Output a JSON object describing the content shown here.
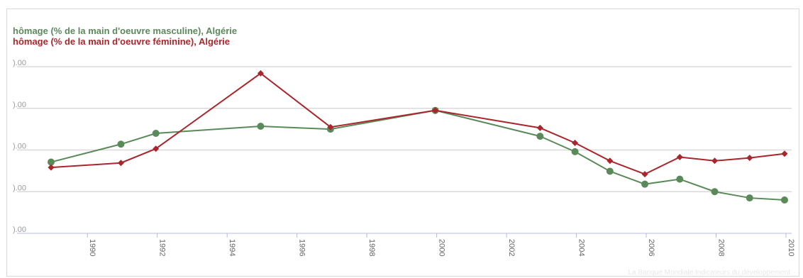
{
  "chart_data": {
    "type": "line",
    "title": "",
    "xlabel": "",
    "ylabel": "",
    "legend_position": "top-left",
    "grid": true,
    "x_ticks": [
      1990,
      1992,
      1994,
      1996,
      1998,
      2000,
      2002,
      2004,
      2006,
      2008,
      2010
    ],
    "x_tick_labels": [
      "1990",
      "1992",
      "1994",
      "1996",
      "1998",
      "2000",
      "2002",
      "2004",
      "2006",
      "2008",
      "2010"
    ],
    "y_tick_labels": [
      ").00",
      ").00",
      ").00",
      ").00",
      ").00"
    ],
    "xlim": [
      1989,
      2010
    ],
    "ylim": [
      0,
      4
    ],
    "series": [
      {
        "name": "hômage (% de la main d'oeuvre masculine), Algérie",
        "color": "#5a8a5a",
        "marker": "circle",
        "x": [
          1989,
          1991,
          1992,
          1995,
          1997,
          2000,
          2003,
          2004,
          2005,
          2006,
          2007,
          2008,
          2009,
          2010
        ],
        "y": [
          1.71,
          2.14,
          2.4,
          2.57,
          2.5,
          2.95,
          2.33,
          1.96,
          1.49,
          1.18,
          1.3,
          1.0,
          0.85,
          0.8
        ]
      },
      {
        "name": "hômage (% de la main d'oeuvre féminine), Algérie",
        "color": "#a8262c",
        "marker": "diamond",
        "x": [
          1989,
          1991,
          1992,
          1995,
          1997,
          2000,
          2003,
          2004,
          2005,
          2006,
          2007,
          2008,
          2009,
          2010
        ],
        "y": [
          1.58,
          1.69,
          2.03,
          3.84,
          2.55,
          2.95,
          2.53,
          2.17,
          1.74,
          1.42,
          1.83,
          1.74,
          1.81,
          1.91
        ]
      }
    ]
  },
  "source_note": "La Banque Mondiale Indicateurs du développement"
}
